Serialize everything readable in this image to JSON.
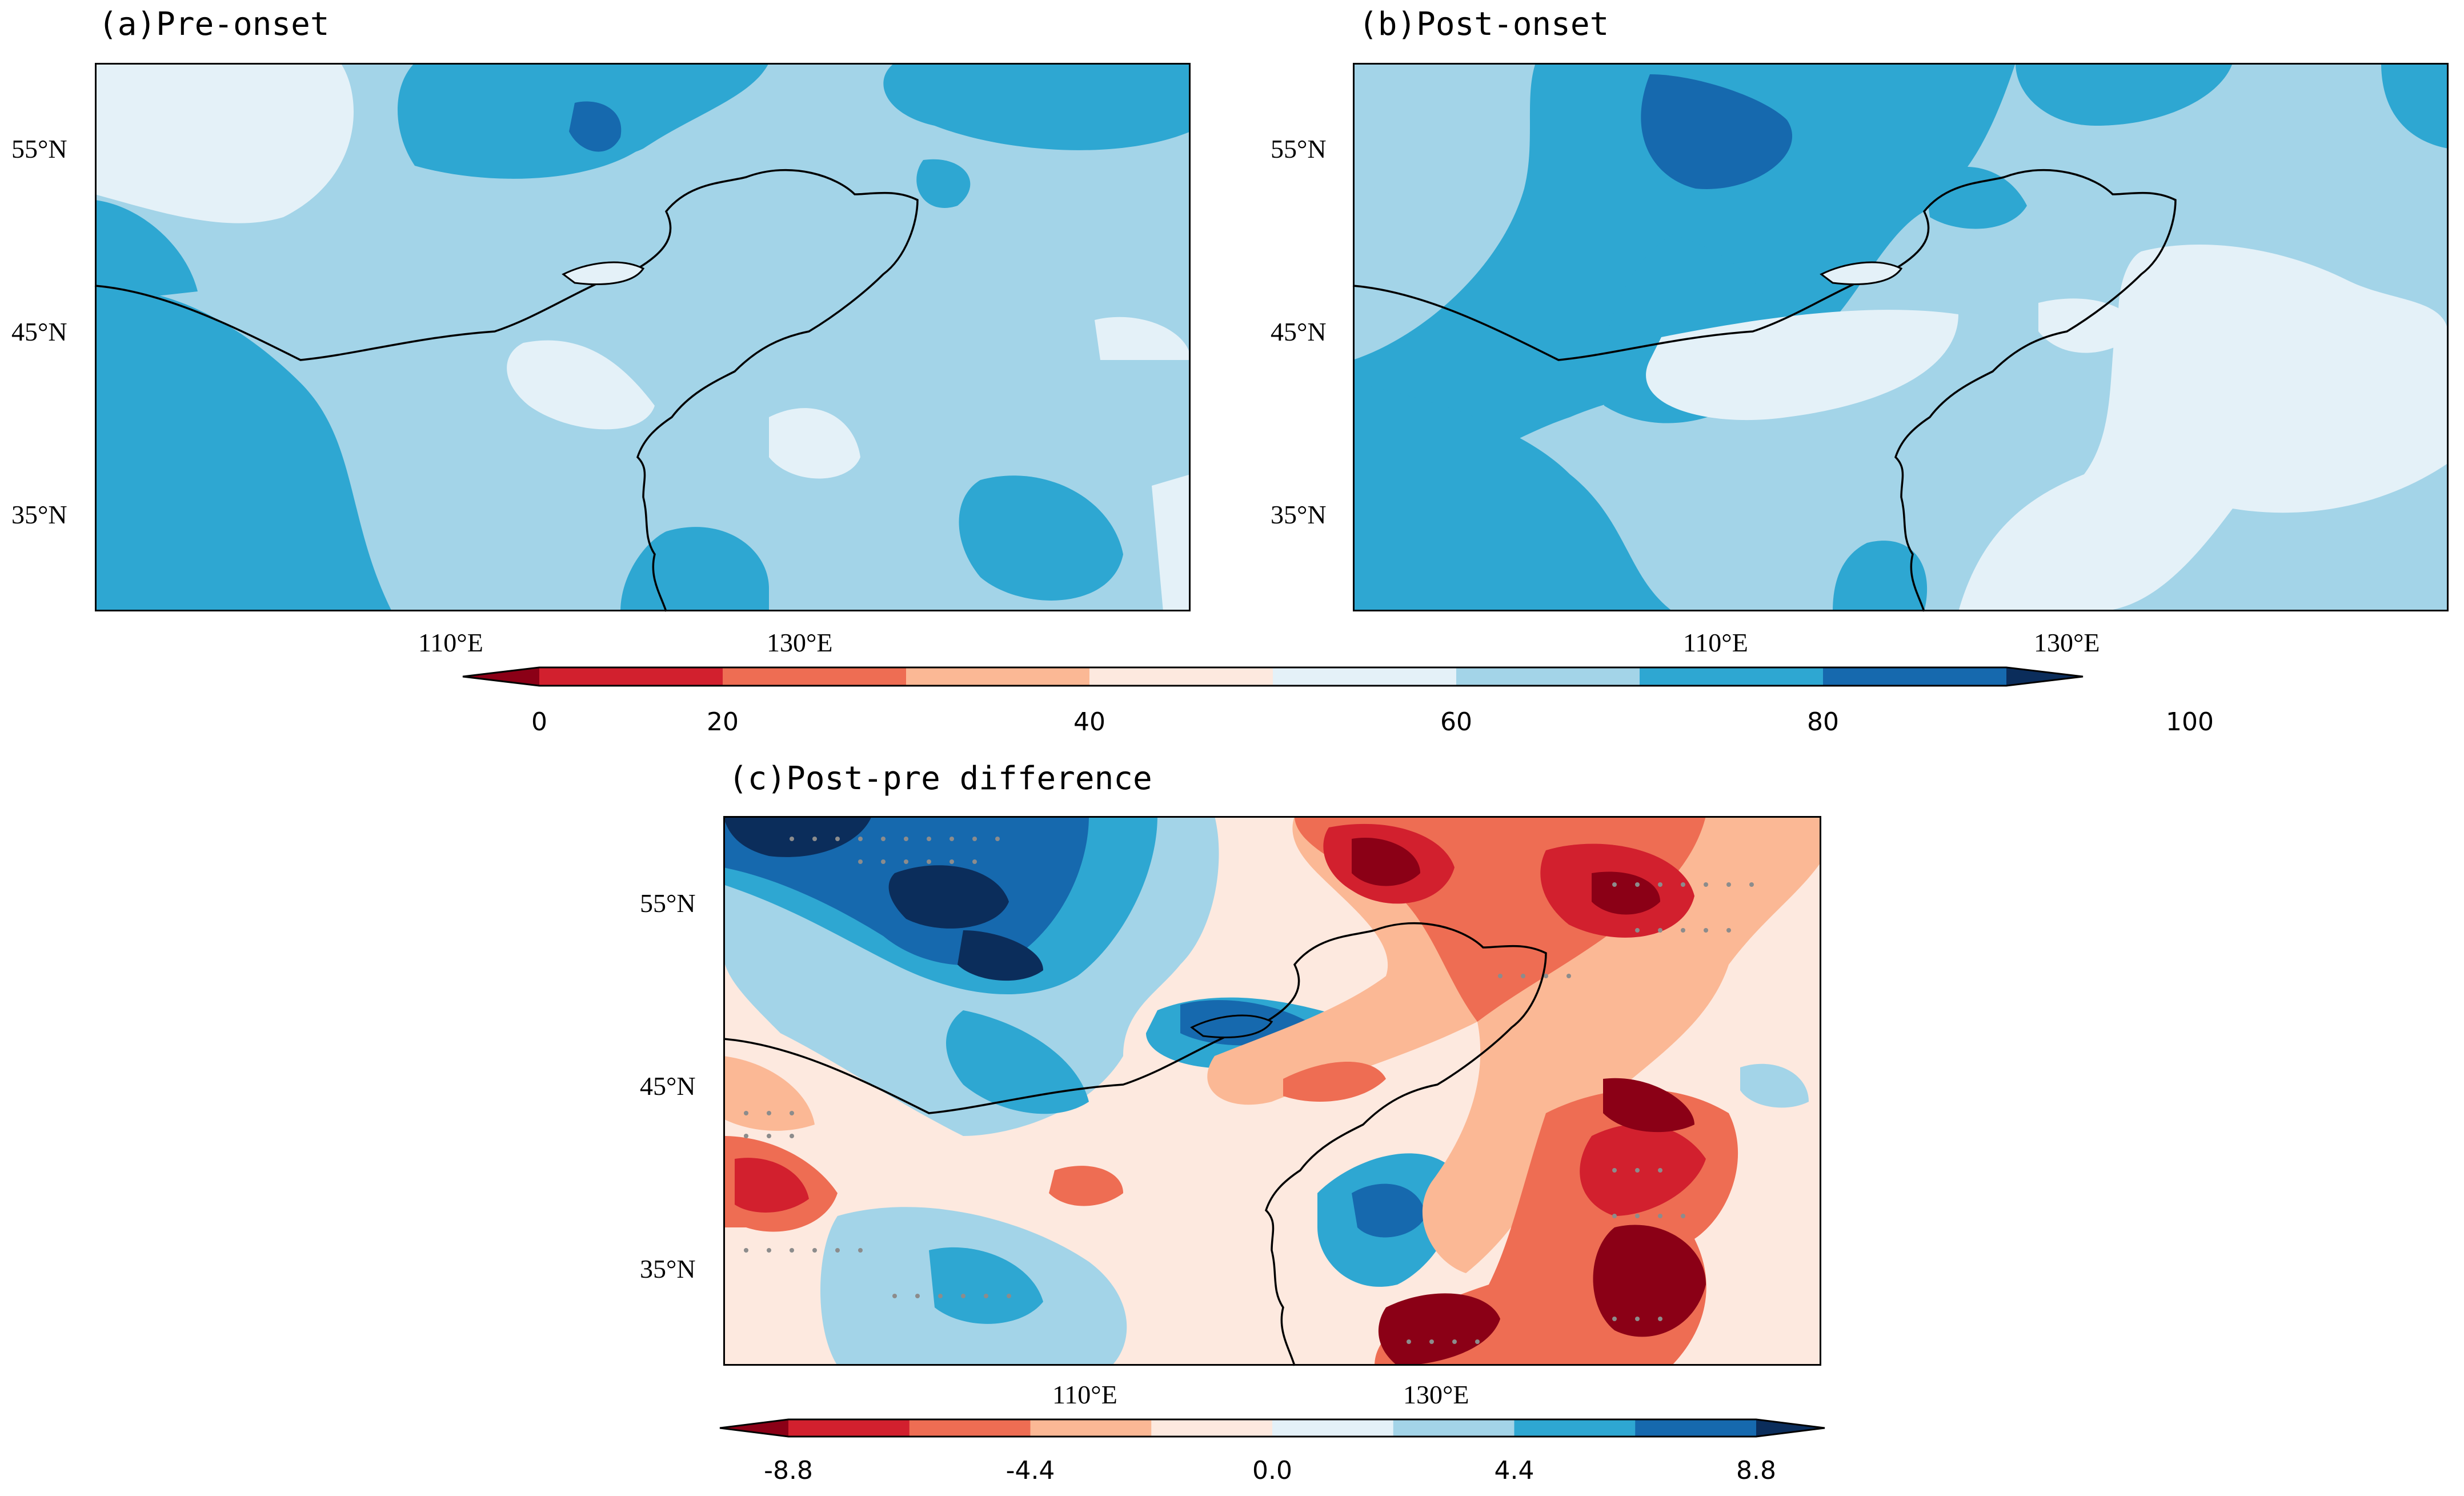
{
  "panels": {
    "a": {
      "title": "(a)Pre-onset",
      "lat_labels": [
        "55°N",
        "45°N",
        "35°N"
      ],
      "lon_labels": [
        "110°E",
        "130°E"
      ]
    },
    "b": {
      "title": "(b)Post-onset",
      "lat_labels": [
        "55°N",
        "45°N",
        "35°N"
      ],
      "lon_labels": [
        "110°E",
        "130°E"
      ]
    },
    "c": {
      "title": "(c)Post-pre difference",
      "lat_labels": [
        "55°N",
        "45°N",
        "35°N"
      ],
      "lon_labels": [
        "110°E",
        "130°E"
      ]
    }
  },
  "colorbar_top": {
    "labels": [
      "0",
      "20",
      "40",
      "60",
      "80",
      "100"
    ],
    "colors": [
      "#8b0016",
      "#d2202e",
      "#ee6d53",
      "#fbb895",
      "#fde9df",
      "#e4f1f8",
      "#a3d4e8",
      "#2ea7d2",
      "#1669ae",
      "#0b2d5b"
    ]
  },
  "colorbar_bottom": {
    "labels": [
      "-8.8",
      "-4.4",
      "0.0",
      "4.4",
      "8.8"
    ],
    "colors": [
      "#8b0016",
      "#d2202e",
      "#ee6d53",
      "#fbb895",
      "#fde9df",
      "#e4f1f8",
      "#a3d4e8",
      "#2ea7d2",
      "#1669ae",
      "#0b2d5b"
    ]
  }
}
